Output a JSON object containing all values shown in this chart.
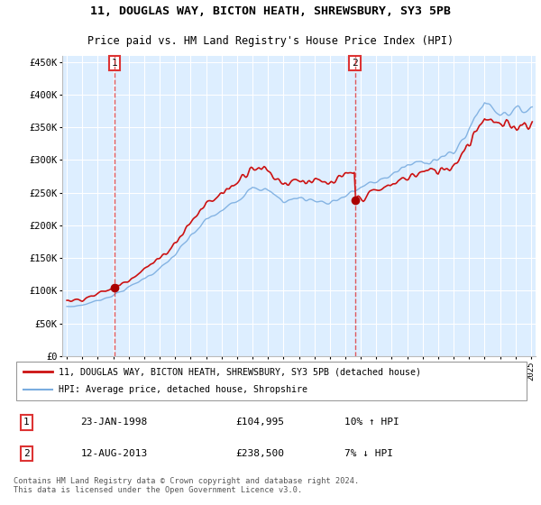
{
  "title": "11, DOUGLAS WAY, BICTON HEATH, SHREWSBURY, SY3 5PB",
  "subtitle": "Price paid vs. HM Land Registry's House Price Index (HPI)",
  "legend_line1": "11, DOUGLAS WAY, BICTON HEATH, SHREWSBURY, SY3 5PB (detached house)",
  "legend_line2": "HPI: Average price, detached house, Shropshire",
  "footer": "Contains HM Land Registry data © Crown copyright and database right 2024.\nThis data is licensed under the Open Government Licence v3.0.",
  "sale1_date": "23-JAN-1998",
  "sale1_price": "£104,995",
  "sale1_hpi": "10% ↑ HPI",
  "sale1_year": 1998.07,
  "sale1_value": 104995,
  "sale2_date": "12-AUG-2013",
  "sale2_price": "£238,500",
  "sale2_hpi": "7% ↓ HPI",
  "sale2_year": 2013.62,
  "sale2_value": 238500,
  "hpi_color": "#7aade0",
  "price_color": "#cc1111",
  "marker_color": "#aa0000",
  "vline_color": "#dd3333",
  "background_color": "#ddeeff",
  "grid_color": "#ffffff",
  "ylim": [
    0,
    460000
  ],
  "ytick_max": 450000,
  "xlim_start": 1994.7,
  "xlim_end": 2025.3
}
